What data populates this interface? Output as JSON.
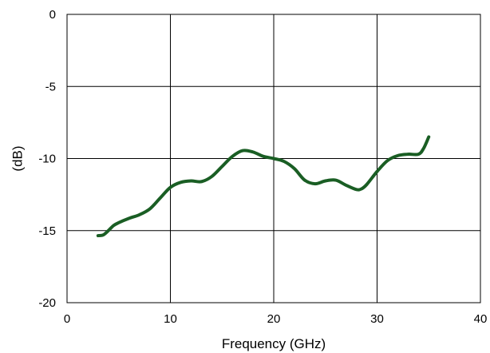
{
  "chart_data": {
    "type": "line",
    "title": "",
    "xlabel": "Frequency (GHz)",
    "ylabel": "(dB)",
    "xlim": [
      0,
      40
    ],
    "ylim": [
      -20,
      0
    ],
    "x_ticks": [
      0,
      10,
      20,
      30,
      40
    ],
    "x_tick_labels": [
      "0",
      "10",
      "20",
      "30",
      "40"
    ],
    "y_ticks": [
      0,
      -5,
      -10,
      -15,
      -20
    ],
    "y_tick_labels": [
      "0",
      "-5",
      "-10",
      "-15",
      "-20"
    ],
    "grid": true,
    "legend": "none",
    "colors": {
      "series": "#1a5e24",
      "grid": "#000000",
      "frame": "#000000",
      "background": "#ffffff"
    },
    "series": [
      {
        "x": [
          3.0,
          3.5,
          4.0,
          4.5,
          5.0,
          6.0,
          7.0,
          8.0,
          9.0,
          10.0,
          11.0,
          12.0,
          13.0,
          14.0,
          15.0,
          16.0,
          17.0,
          18.0,
          19.0,
          20.0,
          21.0,
          22.0,
          23.0,
          24.0,
          25.0,
          26.0,
          27.0,
          28.0,
          28.5,
          29.0,
          30.0,
          31.0,
          32.0,
          33.0,
          34.0,
          34.5,
          35.0
        ],
        "y": [
          -15.35,
          -15.3,
          -15.0,
          -14.65,
          -14.45,
          -14.15,
          -13.9,
          -13.5,
          -12.75,
          -12.0,
          -11.65,
          -11.55,
          -11.6,
          -11.25,
          -10.55,
          -9.85,
          -9.45,
          -9.55,
          -9.85,
          -10.0,
          -10.2,
          -10.7,
          -11.5,
          -11.75,
          -11.55,
          -11.5,
          -11.85,
          -12.15,
          -12.1,
          -11.8,
          -10.9,
          -10.15,
          -9.8,
          -9.7,
          -9.7,
          -9.3,
          -8.5
        ]
      }
    ]
  }
}
